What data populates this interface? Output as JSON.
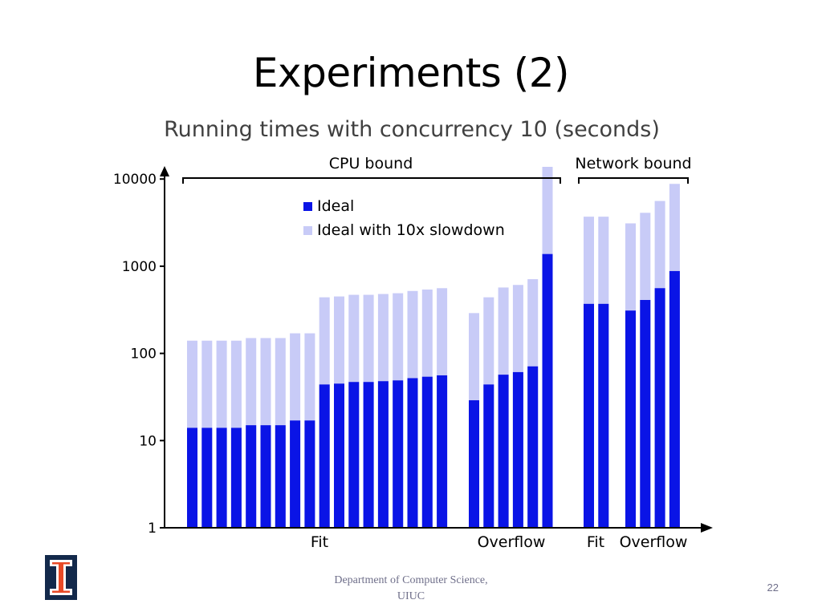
{
  "slide": {
    "title": "Experiments (2)",
    "footer_line1": "Department of Computer  Science,",
    "footer_line2": "UIUC",
    "page_number": "22",
    "logo_icon": "illinois-block-i-logo"
  },
  "chart_data": {
    "type": "bar",
    "title": "Running times with concurrency 10 (seconds)",
    "yscale": "log",
    "ylim": [
      1,
      10000
    ],
    "yticks": [
      "1",
      "10",
      "100",
      "1000",
      "10000"
    ],
    "stacked": true,
    "legend": {
      "placement": "top-left",
      "entries": [
        "Ideal",
        "Ideal with 10x slowdown"
      ]
    },
    "colors": {
      "Ideal": "#0a14e6",
      "Ideal with 10x slowdown": "#c8cbf7"
    },
    "groups": [
      {
        "label": "CPU bound",
        "subgroups": [
          "Fit",
          "Overflow"
        ]
      },
      {
        "label": "Network bound",
        "subgroups": [
          "Fit",
          "Overflow"
        ]
      }
    ],
    "subgroup_labels": [
      "Fit",
      "Overflow",
      "Fit",
      "Overflow"
    ],
    "series": [
      {
        "name": "Ideal",
        "values": [
          [
            14,
            14,
            14,
            14,
            15,
            15,
            15,
            17,
            17,
            44,
            45,
            47,
            47,
            48,
            49,
            52,
            54,
            56
          ],
          [
            29,
            44,
            57,
            61,
            71,
            1380
          ],
          [
            370,
            370
          ],
          [
            310,
            410,
            560,
            880
          ]
        ]
      },
      {
        "name": "Ideal with 10x slowdown",
        "values": [
          [
            140,
            140,
            140,
            140,
            150,
            150,
            150,
            170,
            170,
            440,
            450,
            470,
            470,
            480,
            490,
            520,
            540,
            560
          ],
          [
            290,
            440,
            570,
            610,
            710,
            13800
          ],
          [
            3700,
            3700
          ],
          [
            3100,
            4100,
            5600,
            8800
          ]
        ]
      }
    ]
  }
}
